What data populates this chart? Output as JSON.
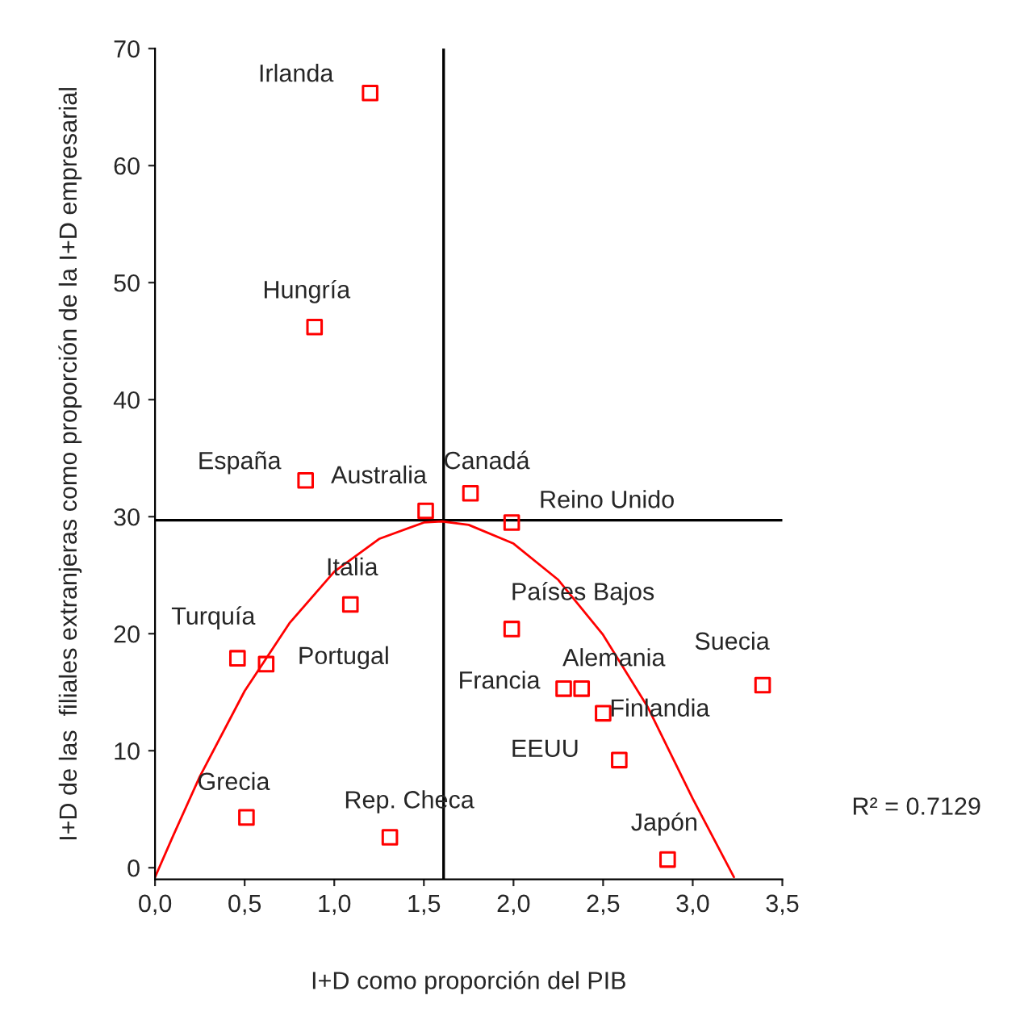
{
  "chart_data": {
    "type": "scatter",
    "xlabel": "I+D como proporción del PIB",
    "ylabel": "I+D de las  filiales extranjeras como proporción de la I+D empresarial",
    "xlim": [
      0,
      3.5
    ],
    "ylim": [
      -1,
      70
    ],
    "xticks": [
      {
        "value": 0,
        "label": "0,0"
      },
      {
        "value": 0.5,
        "label": "0,5"
      },
      {
        "value": 1,
        "label": "1,0"
      },
      {
        "value": 1.5,
        "label": "1,5"
      },
      {
        "value": 2,
        "label": "2,0"
      },
      {
        "value": 2.5,
        "label": "2,5"
      },
      {
        "value": 3,
        "label": "3,0"
      },
      {
        "value": 3.5,
        "label": "3,5"
      }
    ],
    "yticks": [
      0,
      10,
      20,
      30,
      40,
      50,
      60,
      70
    ],
    "grid": false,
    "legend": false,
    "marker": "square",
    "series": [
      {
        "color": "#ff0000",
        "x": [
          1.2,
          0.89,
          0.84,
          1.51,
          1.76,
          1.99,
          1.09,
          0.46,
          0.62,
          1.99,
          2.28,
          2.38,
          2.5,
          3.39,
          2.59,
          0.51,
          1.31,
          2.86
        ],
        "values": [
          66.2,
          46.2,
          33.1,
          30.5,
          32.0,
          29.5,
          22.5,
          17.9,
          17.4,
          20.4,
          15.3,
          15.3,
          13.2,
          15.6,
          9.2,
          4.3,
          2.6,
          0.7
        ]
      },
      {
        "type": "line",
        "color": "#ff0000",
        "marker": "none",
        "x": [
          0,
          0.1,
          0.25,
          0.5,
          0.75,
          1.0,
          1.25,
          1.5,
          1.6,
          1.75,
          2.0,
          2.25,
          2.5,
          2.75,
          3.0,
          3.23
        ],
        "values": [
          -0.8,
          2.7,
          7.8,
          15.1,
          20.9,
          25.3,
          28.1,
          29.5,
          29.6,
          29.3,
          27.7,
          24.6,
          19.9,
          13.7,
          5.9,
          -0.8
        ]
      }
    ],
    "ref_lines": [
      {
        "axis": "x",
        "value": 1.61,
        "color": "#000000"
      },
      {
        "axis": "y",
        "value": 29.7,
        "color": "#000000"
      }
    ],
    "annotations": [
      {
        "text": "Irlanda",
        "x": 1.2,
        "y": 66.2
      },
      {
        "text": "Hungría",
        "x": 0.89,
        "y": 46.2
      },
      {
        "text": "España",
        "x": 0.84,
        "y": 33.1
      },
      {
        "text": "Australia",
        "x": 1.51,
        "y": 30.5
      },
      {
        "text": "Canadá",
        "x": 1.76,
        "y": 32.0
      },
      {
        "text": "Reino Unido",
        "x": 1.99,
        "y": 29.5
      },
      {
        "text": "Italia",
        "x": 1.09,
        "y": 22.5
      },
      {
        "text": "Turquía",
        "x": 0.46,
        "y": 17.9
      },
      {
        "text": "Portugal",
        "x": 0.62,
        "y": 17.4
      },
      {
        "text": "Países Bajos",
        "x": 1.99,
        "y": 20.4
      },
      {
        "text": "Francia",
        "x": 2.28,
        "y": 15.3
      },
      {
        "text": "Alemania",
        "x": 2.38,
        "y": 15.3
      },
      {
        "text": "Finlandia",
        "x": 2.5,
        "y": 13.2
      },
      {
        "text": "Suecia",
        "x": 3.39,
        "y": 15.6
      },
      {
        "text": "EEUU",
        "x": 2.59,
        "y": 9.2
      },
      {
        "text": "Grecia",
        "x": 0.51,
        "y": 4.3
      },
      {
        "text": "Rep. Checa",
        "x": 1.31,
        "y": 2.6
      },
      {
        "text": "Japón",
        "x": 2.86,
        "y": 0.7
      },
      "R² = 0.7129"
    ]
  }
}
